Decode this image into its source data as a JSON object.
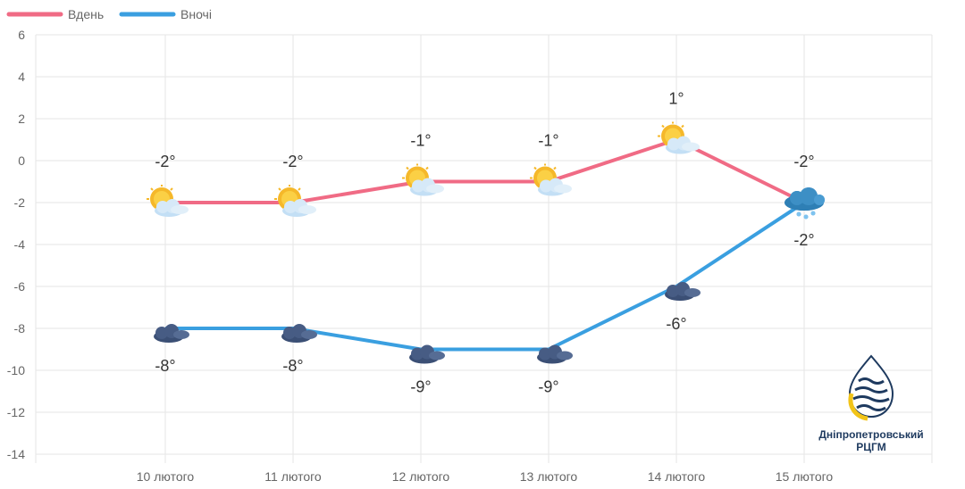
{
  "chart_data": {
    "type": "line",
    "categories": [
      "10 лютого",
      "11 лютого",
      "12 лютого",
      "13 лютого",
      "14 лютого",
      "15 лютого"
    ],
    "ylim": [
      -14,
      6
    ],
    "yticks": [
      6,
      4,
      2,
      0,
      -2,
      -4,
      -6,
      -8,
      -10,
      -12,
      -14
    ],
    "grid": true,
    "legend_position": "top-left",
    "series": [
      {
        "name": "Вдень",
        "color": "#f06b85",
        "values": [
          -2,
          -2,
          -1,
          -1,
          1,
          -2
        ],
        "labels": [
          "-2°",
          "-2°",
          "-1°",
          "-1°",
          "1°",
          "-2°"
        ],
        "icons": [
          "sun-cloud-icon",
          "sun-cloud-icon",
          "sun-cloud-icon",
          "sun-cloud-icon",
          "sun-cloud-icon",
          "snow-cloud-icon"
        ]
      },
      {
        "name": "Вночі",
        "color": "#3a9fe0",
        "values": [
          -8,
          -8,
          -9,
          -9,
          -6,
          -2
        ],
        "labels": [
          "-8°",
          "-8°",
          "-9°",
          "-9°",
          "-6°",
          "-2°"
        ],
        "icons": [
          "moon-cloud-icon",
          "moon-cloud-icon",
          "moon-cloud-icon",
          "moon-cloud-icon",
          "moon-cloud-icon",
          "snow-cloud-icon"
        ]
      }
    ]
  },
  "logo": {
    "line1": "Дніпропетровський",
    "line2": "РЦГМ",
    "colors": {
      "navy": "#1e3a5f",
      "gold": "#f2c418"
    }
  }
}
